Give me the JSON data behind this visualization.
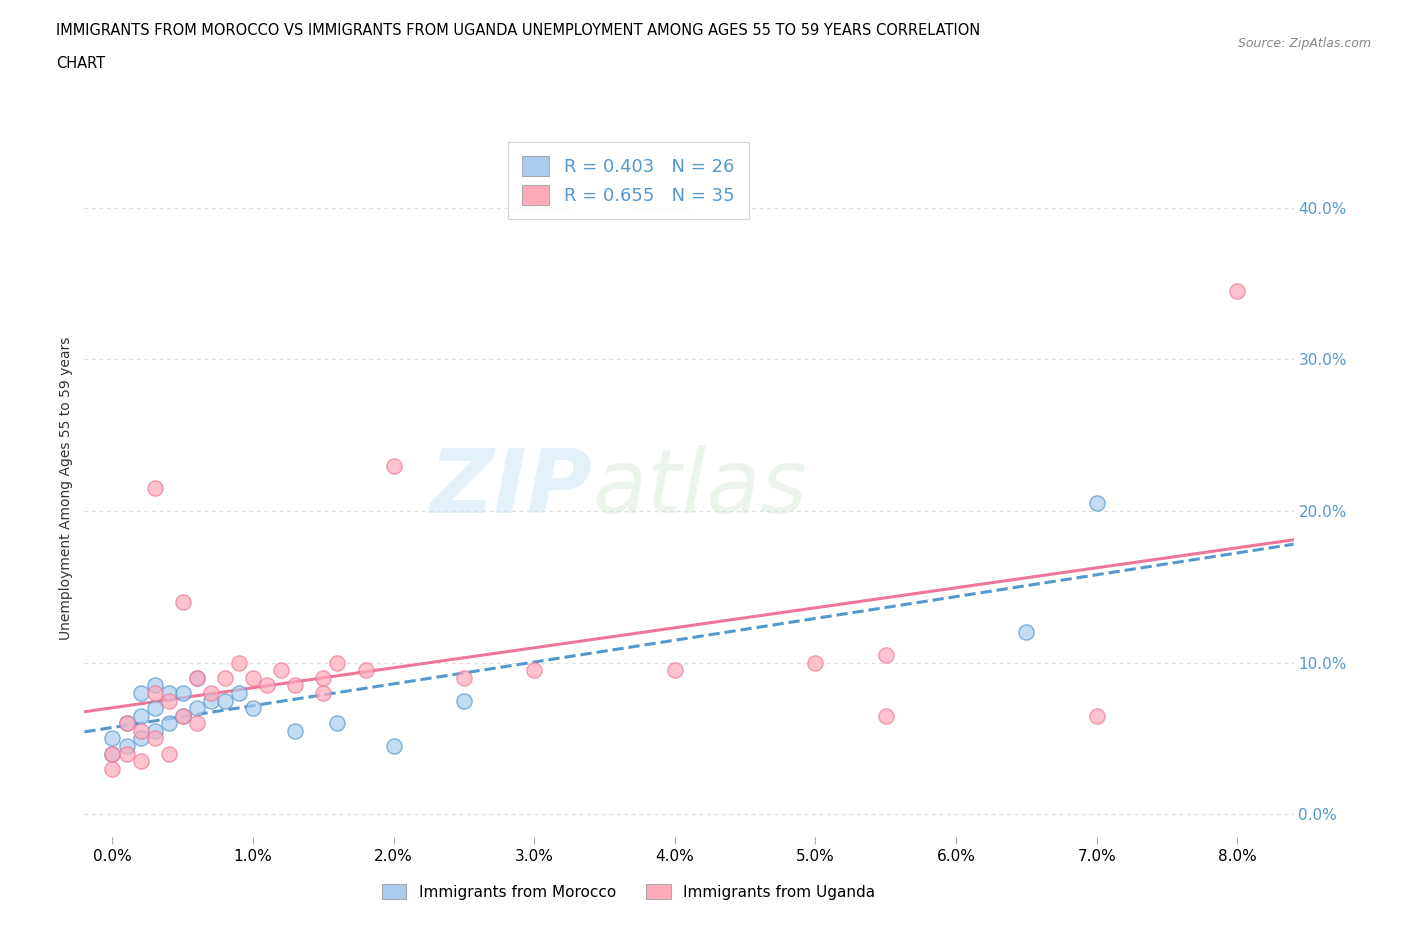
{
  "title_line1": "IMMIGRANTS FROM MOROCCO VS IMMIGRANTS FROM UGANDA UNEMPLOYMENT AMONG AGES 55 TO 59 YEARS CORRELATION",
  "title_line2": "CHART",
  "source": "Source: ZipAtlas.com",
  "ylabel": "Unemployment Among Ages 55 to 59 years",
  "legend_label1": "Immigrants from Morocco",
  "legend_label2": "Immigrants from Uganda",
  "r1": 0.403,
  "n1": 26,
  "r2": 0.655,
  "n2": 35,
  "color1": "#aaccee",
  "color2": "#ffaabb",
  "line_color1": "#5599cc",
  "line_color2": "#ee7799",
  "xlim": [
    -0.002,
    0.084
  ],
  "ylim": [
    -0.015,
    0.445
  ],
  "xticks": [
    0.0,
    0.01,
    0.02,
    0.03,
    0.04,
    0.05,
    0.06,
    0.07,
    0.08
  ],
  "yticks": [
    0.0,
    0.1,
    0.2,
    0.3,
    0.4
  ],
  "morocco_x": [
    0.0,
    0.0,
    0.001,
    0.001,
    0.002,
    0.002,
    0.002,
    0.003,
    0.003,
    0.003,
    0.004,
    0.004,
    0.005,
    0.005,
    0.006,
    0.006,
    0.007,
    0.008,
    0.009,
    0.01,
    0.013,
    0.016,
    0.02,
    0.025,
    0.065,
    0.07
  ],
  "morocco_y": [
    0.04,
    0.05,
    0.045,
    0.06,
    0.05,
    0.065,
    0.08,
    0.055,
    0.07,
    0.085,
    0.06,
    0.08,
    0.065,
    0.08,
    0.07,
    0.09,
    0.075,
    0.075,
    0.08,
    0.07,
    0.055,
    0.06,
    0.045,
    0.075,
    0.12,
    0.205
  ],
  "uganda_x": [
    0.0,
    0.0,
    0.001,
    0.001,
    0.002,
    0.002,
    0.003,
    0.003,
    0.003,
    0.004,
    0.004,
    0.005,
    0.005,
    0.006,
    0.006,
    0.007,
    0.008,
    0.009,
    0.01,
    0.011,
    0.012,
    0.013,
    0.015,
    0.015,
    0.016,
    0.018,
    0.02,
    0.025,
    0.03,
    0.04,
    0.05,
    0.055,
    0.055,
    0.07,
    0.08
  ],
  "uganda_y": [
    0.04,
    0.03,
    0.04,
    0.06,
    0.035,
    0.055,
    0.05,
    0.08,
    0.215,
    0.04,
    0.075,
    0.065,
    0.14,
    0.06,
    0.09,
    0.08,
    0.09,
    0.1,
    0.09,
    0.085,
    0.095,
    0.085,
    0.08,
    0.09,
    0.1,
    0.095,
    0.23,
    0.09,
    0.095,
    0.095,
    0.1,
    0.065,
    0.105,
    0.065,
    0.345
  ],
  "watermark_zip": "ZIP",
  "watermark_atlas": "atlas",
  "background_color": "#ffffff",
  "grid_color": "#dddddd",
  "tick_label_color": "#5599cc",
  "ylabel_color": "#333333"
}
